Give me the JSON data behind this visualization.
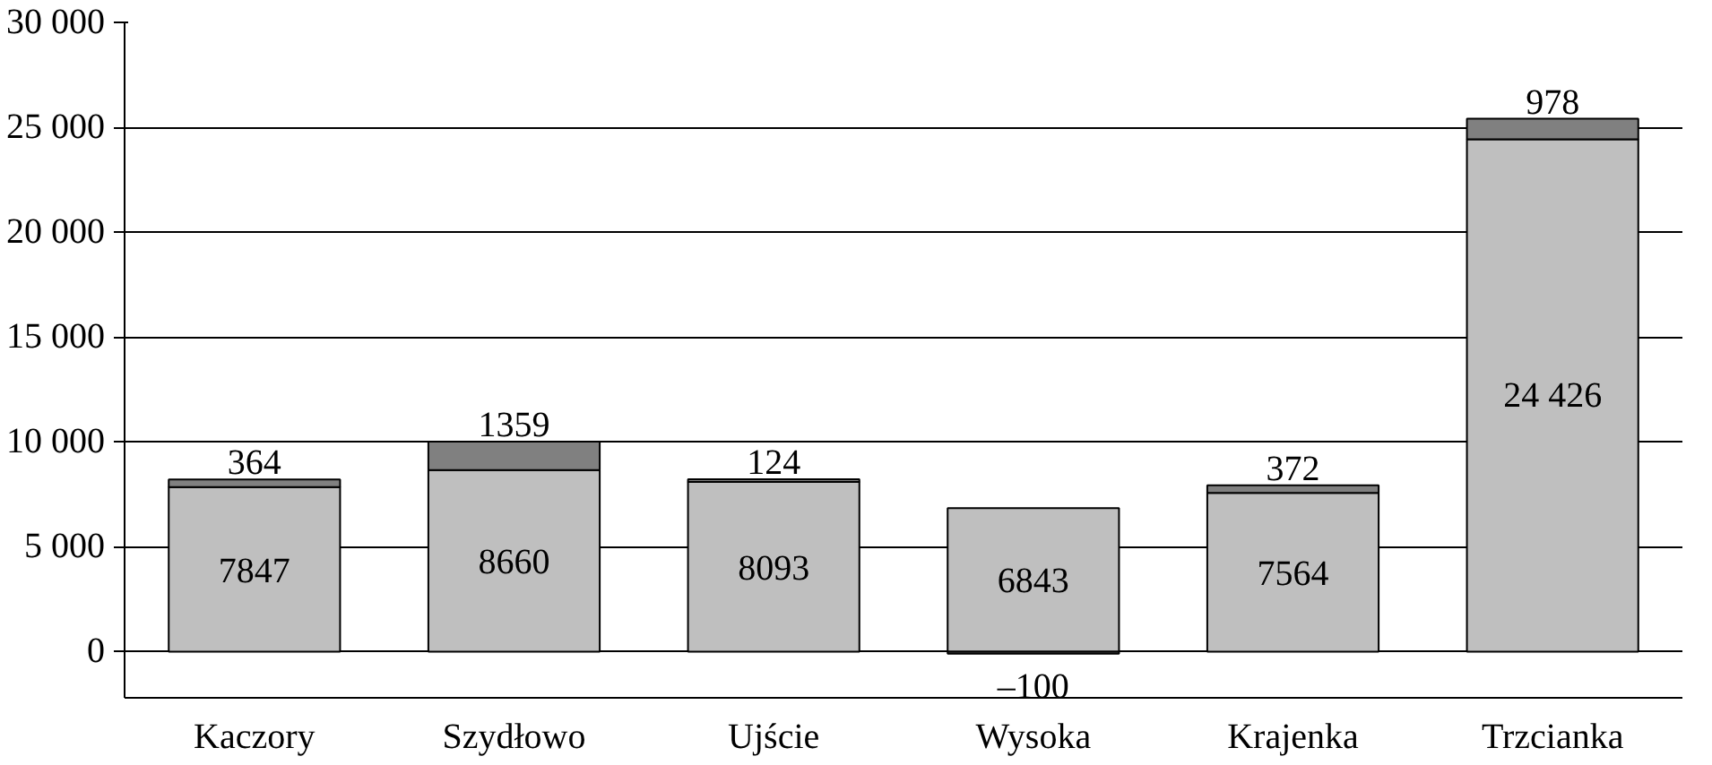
{
  "chart_data": {
    "type": "bar",
    "stacked": true,
    "categories": [
      "Kaczory",
      "Szydłowo",
      "Ujście",
      "Wysoka",
      "Krajenka",
      "Trzcianka"
    ],
    "series": [
      {
        "color": "#bfbfbf",
        "values": [
          7847,
          8660,
          8093,
          6843,
          7564,
          24426
        ],
        "value_labels": [
          "7847",
          "8660",
          "8093",
          "6843",
          "7564",
          "24 426"
        ]
      },
      {
        "color": "#808080",
        "values": [
          364,
          1359,
          124,
          -100,
          372,
          978
        ],
        "value_labels": [
          "364",
          "1359",
          "124",
          "–100",
          "372",
          "978"
        ]
      }
    ],
    "ylim": [
      -2200,
      30000
    ],
    "yticks": [
      {
        "value": 0,
        "label": "0"
      },
      {
        "value": 5000,
        "label": "5 000"
      },
      {
        "value": 10000,
        "label": "10 000"
      },
      {
        "value": 15000,
        "label": "15 000"
      },
      {
        "value": 20000,
        "label": "20 000"
      },
      {
        "value": 25000,
        "label": "25 000"
      },
      {
        "value": 30000,
        "label": "30 000"
      }
    ],
    "grid": "y"
  }
}
